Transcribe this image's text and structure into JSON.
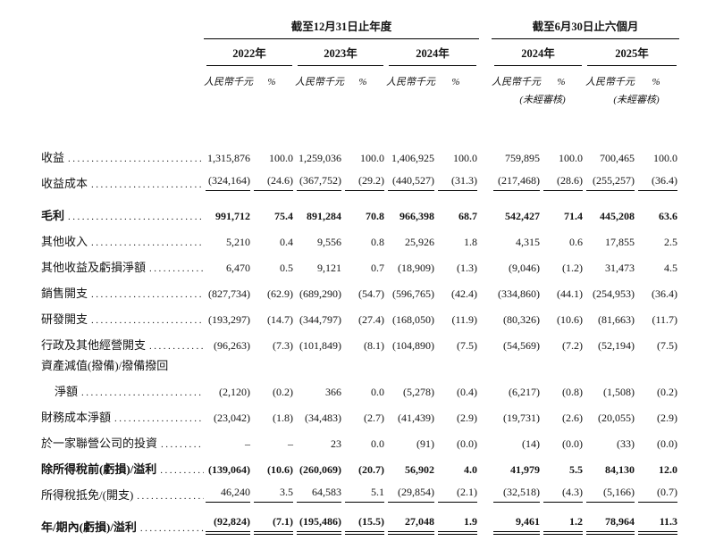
{
  "table": {
    "group_headers": [
      {
        "label": "截至12月31日止年度"
      },
      {
        "label": "截至6月30日止六個月"
      }
    ],
    "periods": [
      {
        "year": "2022年",
        "unit": "人民幣千元",
        "pct_symbol": "%",
        "note": ""
      },
      {
        "year": "2023年",
        "unit": "人民幣千元",
        "pct_symbol": "%",
        "note": ""
      },
      {
        "year": "2024年",
        "unit": "人民幣千元",
        "pct_symbol": "%",
        "note": ""
      },
      {
        "year": "2024年",
        "unit": "人民幣千元",
        "pct_symbol": "%",
        "note": "(未經審核)"
      },
      {
        "year": "2025年",
        "unit": "人民幣千元",
        "pct_symbol": "%",
        "note": "(未經審核)"
      }
    ],
    "rows": [
      {
        "label": "收益",
        "dots": true,
        "bold": false,
        "values": [
          "1,315,876",
          "100.0",
          "1,259,036",
          "100.0",
          "1,406,925",
          "100.0",
          "759,895",
          "100.0",
          "700,465",
          "100.0"
        ]
      },
      {
        "label": "收益成本",
        "dots": true,
        "bold": false,
        "vstyle": "u",
        "values": [
          "(324,164)",
          "(24.6)",
          "(367,752)",
          "(29.2)",
          "(440,527)",
          "(31.3)",
          "(217,468)",
          "(28.6)",
          "(255,257)",
          "(36.4)"
        ]
      },
      {
        "label": "毛利",
        "dots": true,
        "bold": true,
        "cls": "gap-top",
        "values": [
          "991,712",
          "75.4",
          "891,284",
          "70.8",
          "966,398",
          "68.7",
          "542,427",
          "71.4",
          "445,208",
          "63.6"
        ]
      },
      {
        "label": "其他收入",
        "dots": true,
        "bold": false,
        "values": [
          "5,210",
          "0.4",
          "9,556",
          "0.8",
          "25,926",
          "1.8",
          "4,315",
          "0.6",
          "17,855",
          "2.5"
        ]
      },
      {
        "label": "其他收益及虧損淨額",
        "dots": true,
        "bold": false,
        "values": [
          "6,470",
          "0.5",
          "9,121",
          "0.7",
          "(18,909)",
          "(1.3)",
          "(9,046)",
          "(1.2)",
          "31,473",
          "4.5"
        ]
      },
      {
        "label": "銷售開支",
        "dots": true,
        "bold": false,
        "values": [
          "(827,734)",
          "(62.9)",
          "(689,290)",
          "(54.7)",
          "(596,765)",
          "(42.4)",
          "(334,860)",
          "(44.1)",
          "(254,953)",
          "(36.4)"
        ]
      },
      {
        "label": "研發開支",
        "dots": true,
        "bold": false,
        "values": [
          "(193,297)",
          "(14.7)",
          "(344,797)",
          "(27.4)",
          "(168,050)",
          "(11.9)",
          "(80,326)",
          "(10.6)",
          "(81,663)",
          "(11.7)"
        ]
      },
      {
        "label": "行政及其他經營開支",
        "dots": true,
        "bold": false,
        "values": [
          "(96,263)",
          "(7.3)",
          "(101,849)",
          "(8.1)",
          "(104,890)",
          "(7.5)",
          "(54,569)",
          "(7.2)",
          "(52,194)",
          "(7.5)"
        ]
      },
      {
        "label": "資產減值(撥備)/撥備撥回",
        "dots": false,
        "bold": false,
        "cls": "short",
        "values": []
      },
      {
        "label": "淨額",
        "dots": true,
        "bold": false,
        "indent": true,
        "values": [
          "(2,120)",
          "(0.2)",
          "366",
          "0.0",
          "(5,278)",
          "(0.4)",
          "(6,217)",
          "(0.8)",
          "(1,508)",
          "(0.2)"
        ]
      },
      {
        "label": "財務成本淨額",
        "dots": true,
        "bold": false,
        "values": [
          "(23,042)",
          "(1.8)",
          "(34,483)",
          "(2.7)",
          "(41,439)",
          "(2.9)",
          "(19,731)",
          "(2.6)",
          "(20,055)",
          "(2.9)"
        ]
      },
      {
        "label": "於一家聯營公司的投資",
        "dots": true,
        "bold": false,
        "values": [
          "–",
          "–",
          "23",
          "0.0",
          "(91)",
          "(0.0)",
          "(14)",
          "(0.0)",
          "(33)",
          "(0.0)"
        ]
      },
      {
        "label": "除所得稅前(虧損)/溢利",
        "dots": true,
        "bold": true,
        "values": [
          "(139,064)",
          "(10.6)",
          "(260,069)",
          "(20.7)",
          "56,902",
          "4.0",
          "41,979",
          "5.5",
          "84,130",
          "12.0"
        ]
      },
      {
        "label": "所得稅抵免/(開支)",
        "dots": true,
        "bold": false,
        "vstyle": "u",
        "values": [
          "46,240",
          "3.5",
          "64,583",
          "5.1",
          "(29,854)",
          "(2.1)",
          "(32,518)",
          "(4.3)",
          "(5,166)",
          "(0.7)"
        ]
      },
      {
        "label": "年/期內(虧損)/溢利",
        "dots": true,
        "bold": true,
        "vstyle": "uu",
        "cls": "gap-top",
        "values": [
          "(92,824)",
          "(7.1)",
          "(195,486)",
          "(15.5)",
          "27,048",
          "1.9",
          "9,461",
          "1.2",
          "78,964",
          "11.3"
        ]
      }
    ]
  }
}
